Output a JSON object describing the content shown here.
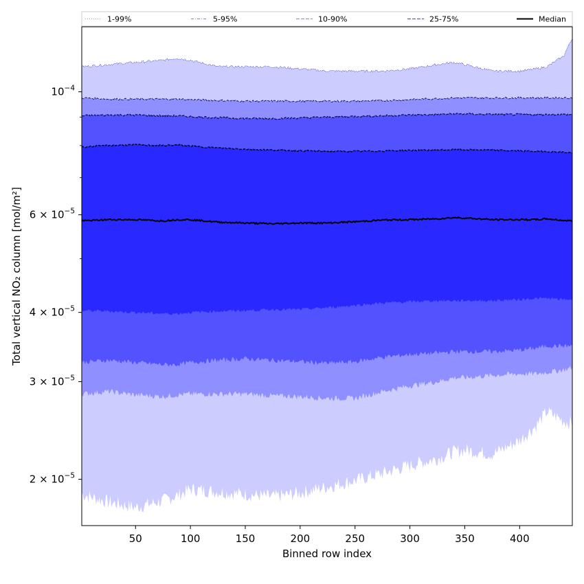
{
  "chart_data": {
    "type": "area",
    "title": "",
    "xlabel": "Binned row index",
    "ylabel": "Total vertical NO₂ column [mol/m²]",
    "xlim": [
      1,
      448
    ],
    "ylim": [
      1.65e-05,
      0.000131
    ],
    "yscale": "log",
    "grid": false,
    "legend_position": "top",
    "x_ticks": [
      {
        "value": 50,
        "label": "50"
      },
      {
        "value": 100,
        "label": "100"
      },
      {
        "value": 150,
        "label": "150"
      },
      {
        "value": 200,
        "label": "200"
      },
      {
        "value": 250,
        "label": "250"
      },
      {
        "value": 300,
        "label": "300"
      },
      {
        "value": 350,
        "label": "350"
      },
      {
        "value": 400,
        "label": "400"
      }
    ],
    "y_ticks": [
      {
        "value": 2e-05,
        "mant": "2",
        "exp": "−5"
      },
      {
        "value": 3e-05,
        "mant": "3",
        "exp": "−5"
      },
      {
        "value": 4e-05,
        "mant": "4",
        "exp": "−5"
      },
      {
        "value": 6e-05,
        "mant": "6",
        "exp": "−5"
      },
      {
        "value": 0.0001,
        "mant": "10",
        "exp": "−4"
      }
    ],
    "y_minor_ticks": [
      5e-05,
      7e-05,
      8e-05,
      9e-05
    ],
    "x": [
      1,
      25,
      50,
      75,
      88,
      100,
      125,
      150,
      175,
      200,
      225,
      250,
      275,
      300,
      325,
      340,
      350,
      375,
      400,
      415,
      425,
      440,
      448
    ],
    "bands": [
      {
        "name": "1-99%",
        "color": "#ccccff",
        "line_color": "#1a1a99",
        "lower": [
          1.88e-05,
          1.82e-05,
          1.78e-05,
          1.83e-05,
          1.87e-05,
          1.92e-05,
          1.9e-05,
          1.88e-05,
          1.86e-05,
          1.89e-05,
          1.94e-05,
          1.99e-05,
          2.05e-05,
          2.12e-05,
          2.18e-05,
          2.24e-05,
          2.26e-05,
          2.22e-05,
          2.35e-05,
          2.5e-05,
          2.65e-05,
          2.55e-05,
          2.52e-05
        ],
        "upper": [
          0.000111,
          0.000112,
          0.000113,
          0.000114,
          0.000115,
          0.000114,
          0.000111,
          0.000111,
          0.000111,
          0.00011,
          0.000109,
          0.000109,
          0.000109,
          0.00011,
          0.000112,
          0.000113,
          0.000112,
          0.000109,
          0.000109,
          0.00011,
          0.000111,
          0.000116,
          0.000125
        ]
      },
      {
        "name": "5-95%",
        "color": "#8f8fff",
        "line_color": "#111166",
        "lower": [
          2.85e-05,
          2.88e-05,
          2.84e-05,
          2.82e-05,
          2.84e-05,
          2.85e-05,
          2.85e-05,
          2.85e-05,
          2.83e-05,
          2.82e-05,
          2.8e-05,
          2.8e-05,
          2.88e-05,
          2.95e-05,
          3e-05,
          3.05e-05,
          3.05e-05,
          3.08e-05,
          3.1e-05,
          3.1e-05,
          3.12e-05,
          3.15e-05,
          3.18e-05
        ],
        "upper": [
          9.75e-05,
          9.7e-05,
          9.7e-05,
          9.7e-05,
          9.7e-05,
          9.68e-05,
          9.65e-05,
          9.62e-05,
          9.62e-05,
          9.62e-05,
          9.62e-05,
          9.62e-05,
          9.64e-05,
          9.68e-05,
          9.72e-05,
          9.75e-05,
          9.75e-05,
          9.75e-05,
          9.75e-05,
          9.75e-05,
          9.75e-05,
          9.75e-05,
          9.75e-05
        ]
      },
      {
        "name": "10-90%",
        "color": "#5252ff",
        "line_color": "#0a0a55",
        "lower": [
          3.25e-05,
          3.28e-05,
          3.25e-05,
          3.22e-05,
          3.22e-05,
          3.25e-05,
          3.28e-05,
          3.3e-05,
          3.28e-05,
          3.26e-05,
          3.24e-05,
          3.26e-05,
          3.32e-05,
          3.36e-05,
          3.38e-05,
          3.4e-05,
          3.4e-05,
          3.4e-05,
          3.42e-05,
          3.45e-05,
          3.48e-05,
          3.48e-05,
          3.48e-05
        ],
        "upper": [
          9.05e-05,
          9.08e-05,
          9.08e-05,
          9.05e-05,
          9.05e-05,
          9.02e-05,
          8.98e-05,
          8.95e-05,
          8.95e-05,
          8.97e-05,
          9e-05,
          9.03e-05,
          9.05e-05,
          9.08e-05,
          9.1e-05,
          9.12e-05,
          9.12e-05,
          9.1e-05,
          9.1e-05,
          9.1e-05,
          9.1e-05,
          9.1e-05,
          9.1e-05
        ]
      },
      {
        "name": "25-75%",
        "color": "#2929ff",
        "line_color": "#050533",
        "lower": [
          4.03e-05,
          4.02e-05,
          4e-05,
          3.98e-05,
          3.98e-05,
          4e-05,
          4.02e-05,
          4.03e-05,
          4.05e-05,
          4.05e-05,
          4.08e-05,
          4.12e-05,
          4.16e-05,
          4.18e-05,
          4.2e-05,
          4.2e-05,
          4.2e-05,
          4.2e-05,
          4.22e-05,
          4.24e-05,
          4.24e-05,
          4.22e-05,
          4.22e-05
        ],
        "upper": [
          7.95e-05,
          8e-05,
          8.02e-05,
          8e-05,
          8.02e-05,
          7.98e-05,
          7.92e-05,
          7.88e-05,
          7.85e-05,
          7.83e-05,
          7.81e-05,
          7.81e-05,
          7.82e-05,
          7.84e-05,
          7.85e-05,
          7.86e-05,
          7.86e-05,
          7.85e-05,
          7.82e-05,
          7.81e-05,
          7.8e-05,
          7.78e-05,
          7.76e-05
        ]
      }
    ],
    "median": {
      "name": "Median",
      "color": "#000000",
      "values": [
        5.85e-05,
        5.88e-05,
        5.88e-05,
        5.85e-05,
        5.88e-05,
        5.88e-05,
        5.82e-05,
        5.8e-05,
        5.78e-05,
        5.8e-05,
        5.8e-05,
        5.83e-05,
        5.87e-05,
        5.88e-05,
        5.9e-05,
        5.93e-05,
        5.92e-05,
        5.88e-05,
        5.88e-05,
        5.88e-05,
        5.9e-05,
        5.86e-05,
        5.85e-05
      ]
    },
    "legend": [
      {
        "label": "1-99%",
        "style": "dotted",
        "color": "#aaaaaa"
      },
      {
        "label": "5-95%",
        "style": "dashdot",
        "color": "#8f8fdf"
      },
      {
        "label": "10-90%",
        "style": "dashed",
        "color": "#8f8fff"
      },
      {
        "label": "25-75%",
        "style": "dashed",
        "color": "#5252ff"
      },
      {
        "label": "Median",
        "style": "solid",
        "color": "#000000"
      }
    ]
  }
}
